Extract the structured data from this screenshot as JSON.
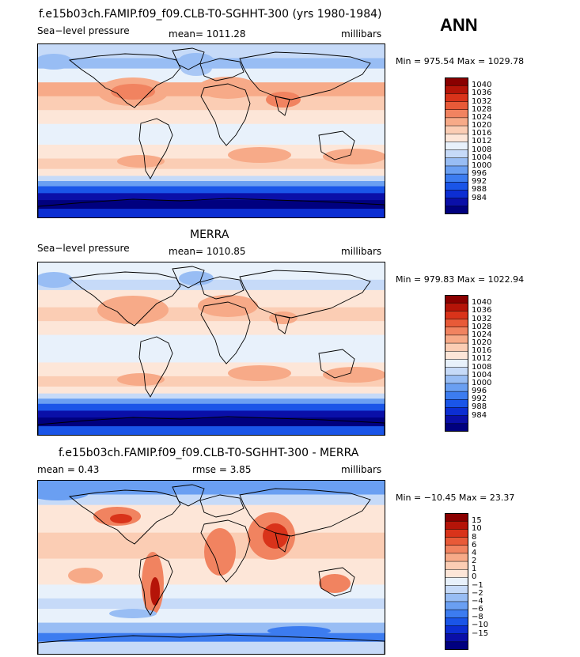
{
  "colors": {
    "slp": [
      "#00007f",
      "#0a0fa8",
      "#0c2ed3",
      "#1a55e8",
      "#3c7cf0",
      "#6a9ff2",
      "#98bdf4",
      "#c6daf8",
      "#e8f1fb",
      "#fde6d8",
      "#fbcdb4",
      "#f7aa88",
      "#f18360",
      "#e85a38",
      "#d9331a",
      "#b51408",
      "#8a0000"
    ],
    "diff": [
      "#00007f",
      "#0a0fa8",
      "#0c2ed3",
      "#1a55e8",
      "#3c7cf0",
      "#6a9ff2",
      "#98bdf4",
      "#c6daf8",
      "#e8f1fb",
      "#fde6d8",
      "#fbcdb4",
      "#f7aa88",
      "#f18360",
      "#e85a38",
      "#d9331a",
      "#b51408",
      "#8a0000"
    ]
  },
  "chart_data": [
    {
      "type": "heatmap",
      "title": "f.e15b03ch.FAMIP.f09_f09.CLB-T0-SGHHT-300 (yrs 1980-1984)",
      "season": "ANN",
      "variable": "Sea−level pressure",
      "mean_label": "mean=  1011.28",
      "units": "millibars",
      "minmax_label": "Min = 975.54 Max = 1029.78",
      "min": 975.54,
      "max": 1029.78,
      "mean": 1011.28,
      "colorbar_levels": [
        "1040",
        "1036",
        "1032",
        "1028",
        "1024",
        "1020",
        "1016",
        "1012",
        "1008",
        "1004",
        "1000",
        "996",
        "992",
        "988",
        "984"
      ]
    },
    {
      "type": "heatmap",
      "title": "MERRA",
      "variable": "Sea−level pressure",
      "mean_label": "mean=  1010.85",
      "units": "millibars",
      "minmax_label": "Min = 979.83 Max = 1022.94",
      "min": 979.83,
      "max": 1022.94,
      "mean": 1010.85,
      "colorbar_levels": [
        "1040",
        "1036",
        "1032",
        "1028",
        "1024",
        "1020",
        "1016",
        "1012",
        "1008",
        "1004",
        "1000",
        "996",
        "992",
        "988",
        "984"
      ]
    },
    {
      "type": "heatmap",
      "title": "f.e15b03ch.FAMIP.f09_f09.CLB-T0-SGHHT-300 - MERRA",
      "mean_label": "mean =    0.43",
      "rmse_label": "rmse =    3.85",
      "units": "millibars",
      "minmax_label": "Min = −10.45 Max =  23.37",
      "min": -10.45,
      "max": 23.37,
      "mean": 0.43,
      "rmse": 3.85,
      "colorbar_levels": [
        "15",
        "10",
        "8",
        "6",
        "4",
        "2",
        "1",
        "0",
        "−1",
        "−2",
        "−4",
        "−6",
        "−8",
        "−10",
        "−15"
      ]
    }
  ]
}
